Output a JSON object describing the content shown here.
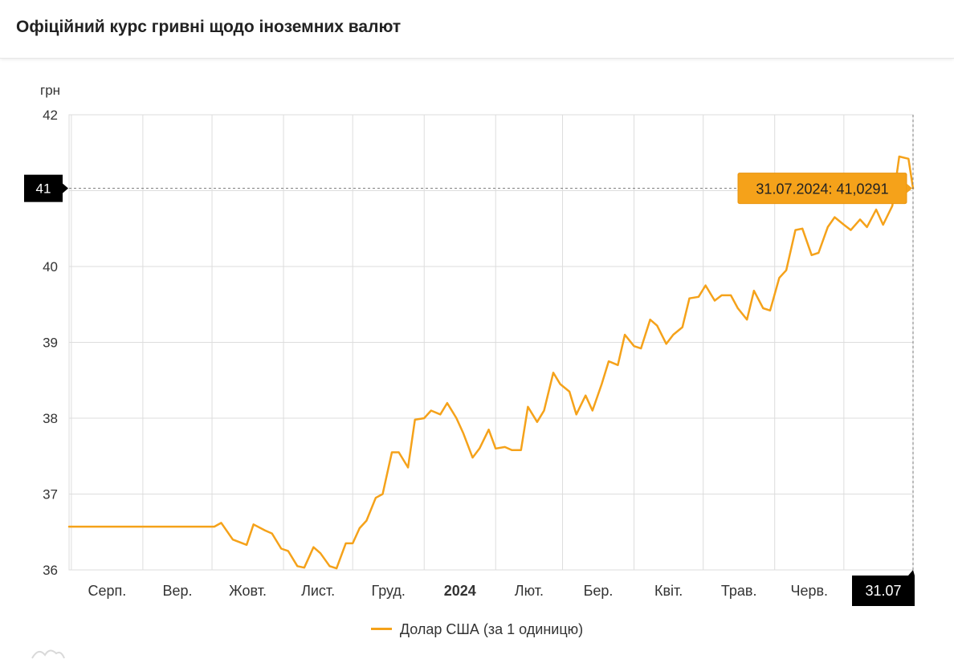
{
  "header": {
    "title": "Офіційний курс гривні щодо іноземних валют"
  },
  "colors": {
    "series": "#f5a21a",
    "tooltip_bg": "#f5a21a",
    "badge_bg": "#000000",
    "grid": "#dddddd"
  },
  "chart_data": {
    "type": "line",
    "ylabel": "грн",
    "ylim": [
      36,
      42
    ],
    "y_ticks": [
      "36",
      "37",
      "38",
      "39",
      "40",
      "41",
      "42"
    ],
    "x_tick_labels": [
      "Серп.",
      "Вер.",
      "Жовт.",
      "Лист.",
      "Груд.",
      "2024",
      "Лют.",
      "Бер.",
      "Квіт.",
      "Трав.",
      "Черв."
    ],
    "x_range": [
      "2023-07-31",
      "2024-07-31"
    ],
    "grid": true,
    "legend_position": "bottom",
    "series": [
      {
        "name": "Долар США (за 1 одиницю)",
        "x": [
          "2023-07-31",
          "2023-08-15",
          "2023-09-01",
          "2023-09-15",
          "2023-10-02",
          "2023-10-05",
          "2023-10-10",
          "2023-10-16",
          "2023-10-19",
          "2023-10-24",
          "2023-10-27",
          "2023-10-31",
          "2023-11-03",
          "2023-11-07",
          "2023-11-10",
          "2023-11-14",
          "2023-11-17",
          "2023-11-21",
          "2023-11-24",
          "2023-11-28",
          "2023-12-01",
          "2023-12-04",
          "2023-12-07",
          "2023-12-11",
          "2023-12-14",
          "2023-12-18",
          "2023-12-21",
          "2023-12-25",
          "2023-12-28",
          "2024-01-01",
          "2024-01-04",
          "2024-01-08",
          "2024-01-11",
          "2024-01-15",
          "2024-01-18",
          "2024-01-22",
          "2024-01-25",
          "2024-01-29",
          "2024-02-01",
          "2024-02-05",
          "2024-02-08",
          "2024-02-12",
          "2024-02-15",
          "2024-02-19",
          "2024-02-22",
          "2024-02-26",
          "2024-02-29",
          "2024-03-04",
          "2024-03-07",
          "2024-03-11",
          "2024-03-14",
          "2024-03-18",
          "2024-03-21",
          "2024-03-25",
          "2024-03-28",
          "2024-04-01",
          "2024-04-04",
          "2024-04-08",
          "2024-04-11",
          "2024-04-15",
          "2024-04-18",
          "2024-04-22",
          "2024-04-25",
          "2024-04-29",
          "2024-05-02",
          "2024-05-06",
          "2024-05-09",
          "2024-05-13",
          "2024-05-16",
          "2024-05-20",
          "2024-05-23",
          "2024-05-27",
          "2024-05-30",
          "2024-06-03",
          "2024-06-06",
          "2024-06-10",
          "2024-06-13",
          "2024-06-17",
          "2024-06-20",
          "2024-06-24",
          "2024-06-27",
          "2024-07-01",
          "2024-07-04",
          "2024-07-08",
          "2024-07-11",
          "2024-07-15",
          "2024-07-18",
          "2024-07-22",
          "2024-07-25",
          "2024-07-29",
          "2024-07-31"
        ],
        "y": [
          36.57,
          36.57,
          36.57,
          36.57,
          36.57,
          36.62,
          36.4,
          36.33,
          36.6,
          36.52,
          36.48,
          36.28,
          36.25,
          36.05,
          36.03,
          36.3,
          36.22,
          36.05,
          36.02,
          36.35,
          36.35,
          36.55,
          36.65,
          36.95,
          37.0,
          37.55,
          37.55,
          37.35,
          37.98,
          38.0,
          38.1,
          38.05,
          38.2,
          38.0,
          37.8,
          37.48,
          37.6,
          37.85,
          37.6,
          37.62,
          37.58,
          37.58,
          38.15,
          37.95,
          38.1,
          38.6,
          38.45,
          38.35,
          38.05,
          38.3,
          38.1,
          38.45,
          38.75,
          38.7,
          39.1,
          38.95,
          38.92,
          39.3,
          39.22,
          38.98,
          39.1,
          39.2,
          39.58,
          39.6,
          39.75,
          39.55,
          39.62,
          39.62,
          39.45,
          39.3,
          39.68,
          39.45,
          39.42,
          39.85,
          39.95,
          40.48,
          40.5,
          40.15,
          40.18,
          40.52,
          40.65,
          40.55,
          40.48,
          40.62,
          40.52,
          40.75,
          40.55,
          40.8,
          41.45,
          41.42,
          41.03
        ]
      }
    ],
    "highlight": {
      "tooltip": "31.07.2024: 41,0291",
      "y_badge": "41",
      "x_badge": "31.07"
    }
  }
}
